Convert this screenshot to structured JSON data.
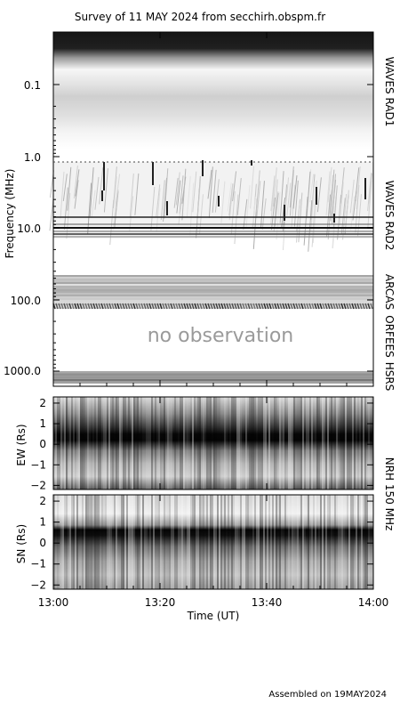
{
  "title": "Survey of 11 MAY 2024 from secchirh.obspm.fr",
  "footer": "Assembled on 19MAY2024",
  "no_observation_text": "no observation",
  "chart_data": [
    {
      "type": "heatmap",
      "name": "dynamic-spectrum",
      "ylabel": "Frequency (MHz)",
      "yscale": "log",
      "ylim": [
        0.02,
        1500
      ],
      "y_ticks": [
        "0.1",
        "1.0",
        "10.0",
        "100.0",
        "1000.0"
      ],
      "instruments": [
        "WAVES RAD1",
        "WAVES RAD2",
        "ARCAS",
        "ORFEES",
        "HSRS"
      ],
      "colors": {
        "low": "#ffffff",
        "high": "#000000"
      }
    },
    {
      "type": "heatmap",
      "name": "nrh-ew",
      "ylabel": "EW (Rs)",
      "ylim": [
        -2.2,
        2.3
      ],
      "y_ticks": [
        "2",
        "1",
        "0",
        "−1",
        "−2"
      ],
      "right_label": "NRH 150 MHz"
    },
    {
      "type": "heatmap",
      "name": "nrh-sn",
      "ylabel": "SN (Rs)",
      "ylim": [
        -2.2,
        2.3
      ],
      "y_ticks": [
        "2",
        "1",
        "0",
        "−1",
        "−2"
      ],
      "right_label": "NRH 150 MHz"
    }
  ],
  "time_axis": {
    "label": "Time (UT)",
    "range": [
      "13:00",
      "14:00"
    ],
    "ticks": [
      "13:00",
      "13:20",
      "13:40",
      "14:00"
    ]
  }
}
